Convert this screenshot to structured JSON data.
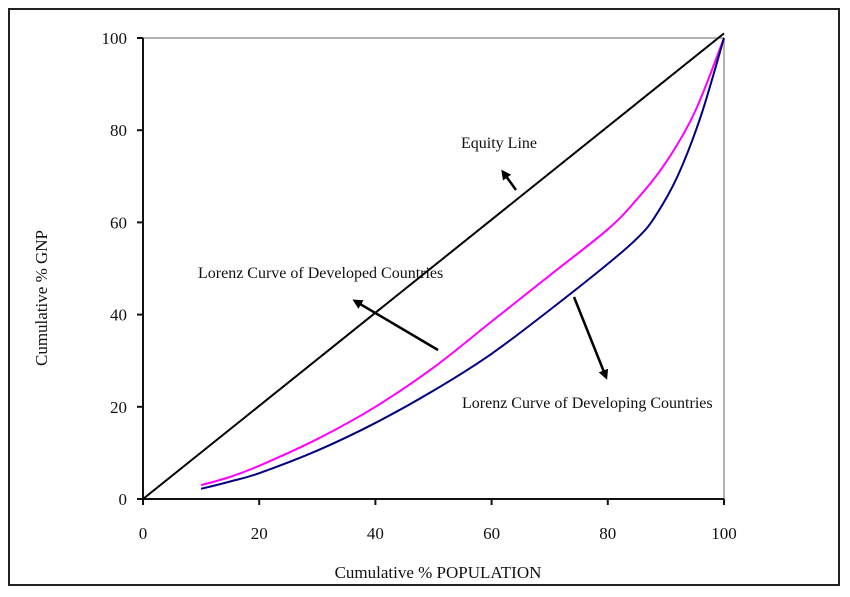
{
  "chart_data": {
    "type": "line",
    "title": "",
    "xlabel": "Cumulative % POPULATION",
    "ylabel": "Cumulative % GNP",
    "xlim": [
      0,
      100
    ],
    "ylim": [
      0,
      100
    ],
    "xticks": [
      "0",
      "20",
      "40",
      "60",
      "80",
      "100"
    ],
    "yticks": [
      "0",
      "20",
      "40",
      "60",
      "80",
      "100"
    ],
    "grid": false,
    "series": [
      {
        "name": "Equity Line",
        "color": "#000000",
        "x": [
          0,
          100
        ],
        "y": [
          0,
          101
        ]
      },
      {
        "name": "Lorenz Curve of Developed Countries",
        "color": "#ff00ff",
        "x": [
          10,
          15,
          20,
          30,
          40,
          50,
          60,
          70,
          80,
          85,
          90,
          95,
          100
        ],
        "y": [
          3,
          4.8,
          7.2,
          13,
          20,
          28.5,
          38.5,
          48.5,
          58.5,
          65,
          73,
          84,
          100
        ]
      },
      {
        "name": "Lorenz Curve of Developing Countries",
        "color": "#000080",
        "x": [
          10,
          15,
          20,
          30,
          40,
          50,
          60,
          70,
          80,
          85,
          88,
          92,
          96,
          100
        ],
        "y": [
          2.2,
          3.8,
          5.6,
          10.5,
          16.5,
          23.5,
          31.5,
          41,
          51,
          56.5,
          61,
          70,
          83,
          100
        ]
      }
    ],
    "annotations": [
      {
        "text": "Equity Line",
        "target": "Equity Line"
      },
      {
        "text": "Lorenz Curve of Developed Countries",
        "target": "Lorenz Curve of Developed Countries"
      },
      {
        "text": "Lorenz Curve of Developing Countries",
        "target": "Lorenz Curve of Developing Countries"
      }
    ]
  }
}
